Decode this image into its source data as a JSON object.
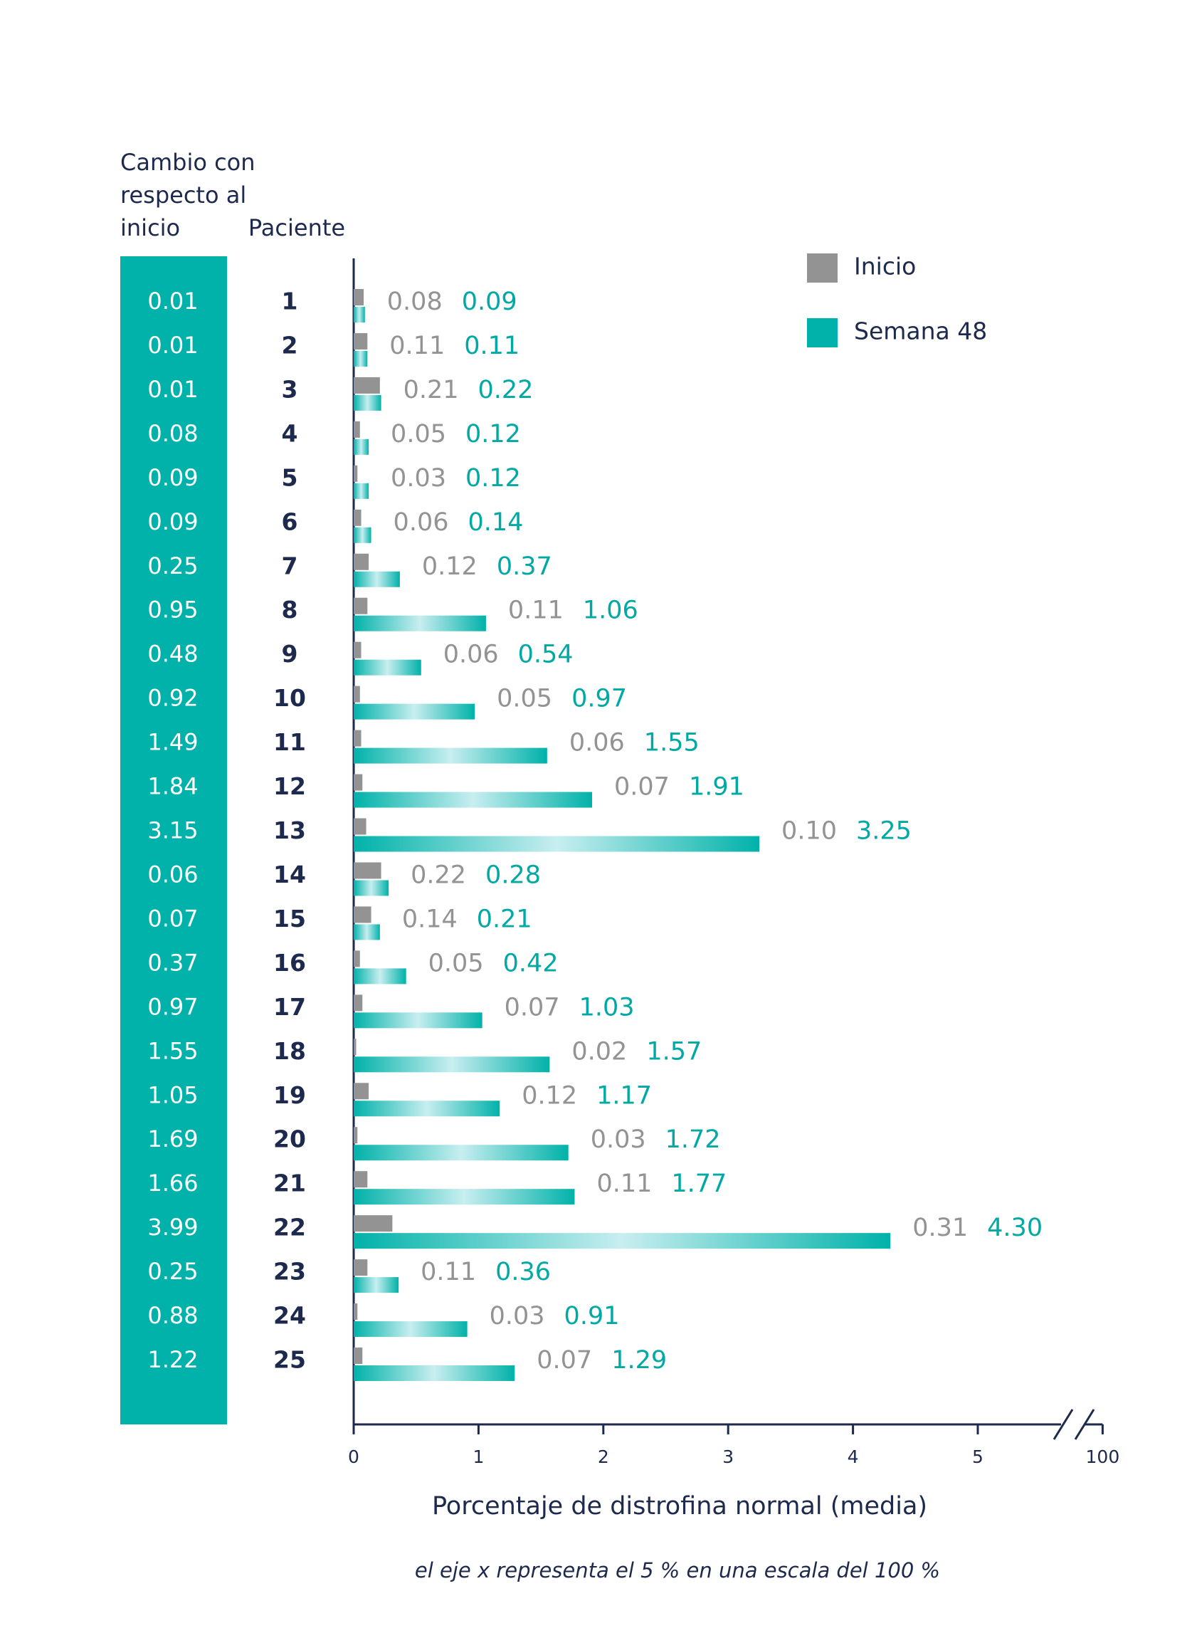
{
  "chart_data": {
    "type": "bar",
    "orientation": "horizontal",
    "change_title": "Cambio con respecto al inicio",
    "category_title": "Paciente",
    "change_values": [
      0.01,
      0.01,
      0.01,
      0.08,
      0.09,
      0.09,
      0.25,
      0.95,
      0.48,
      0.92,
      1.49,
      1.84,
      3.15,
      0.06,
      0.07,
      0.37,
      0.97,
      1.55,
      1.05,
      1.69,
      1.66,
      3.99,
      0.25,
      0.88,
      1.22
    ],
    "change_color": "#00b2a9",
    "categories": [
      "1",
      "2",
      "3",
      "4",
      "5",
      "6",
      "7",
      "8",
      "9",
      "10",
      "11",
      "12",
      "13",
      "14",
      "15",
      "16",
      "17",
      "18",
      "19",
      "20",
      "21",
      "22",
      "23",
      "24",
      "25"
    ],
    "series": [
      {
        "name": "Inicio",
        "color": "#939393",
        "values": [
          0.08,
          0.11,
          0.21,
          0.05,
          0.03,
          0.06,
          0.12,
          0.11,
          0.06,
          0.05,
          0.06,
          0.07,
          0.1,
          0.22,
          0.14,
          0.05,
          0.07,
          0.02,
          0.12,
          0.03,
          0.11,
          0.31,
          0.11,
          0.03,
          0.07
        ],
        "value_labels": [
          "0.08",
          "0.11",
          "0.21",
          "0.05",
          "0.03",
          "0.06",
          "0.12",
          "0.11",
          "0.06",
          "0.05",
          "0.06",
          "0.07",
          "0.10",
          "0.22",
          "0.14",
          "0.05",
          "0.07",
          "0.02",
          "0.12",
          "0.03",
          "0.11",
          "0.31",
          "0.11",
          "0.03",
          "0.07"
        ]
      },
      {
        "name": "Semana 48",
        "color": "#00b2a9",
        "values": [
          0.09,
          0.11,
          0.22,
          0.12,
          0.12,
          0.14,
          0.37,
          1.06,
          0.54,
          0.97,
          1.55,
          1.91,
          3.25,
          0.28,
          0.21,
          0.42,
          1.03,
          1.57,
          1.17,
          1.72,
          1.77,
          4.3,
          0.36,
          0.91,
          1.29
        ],
        "value_labels": [
          "0.09",
          "0.11",
          "0.22",
          "0.12",
          "0.12",
          "0.14",
          "0.37",
          "1.06",
          "0.54",
          "0.97",
          "1.55",
          "1.91",
          "3.25",
          "0.28",
          "0.21",
          "0.42",
          "1.03",
          "1.57",
          "1.17",
          "1.72",
          "1.77",
          "4.30",
          "0.36",
          "0.91",
          "1.29"
        ]
      }
    ],
    "xlim": [
      0,
      100
    ],
    "xbreak": 5.5,
    "xticks": [
      0,
      1,
      2,
      3,
      4,
      5,
      100
    ],
    "xlabel": "Porcentaje de distrofina normal (media)",
    "note": "el eje x representa el 5 % en una escala del 100 %",
    "legend": "top-right",
    "grid": false
  }
}
